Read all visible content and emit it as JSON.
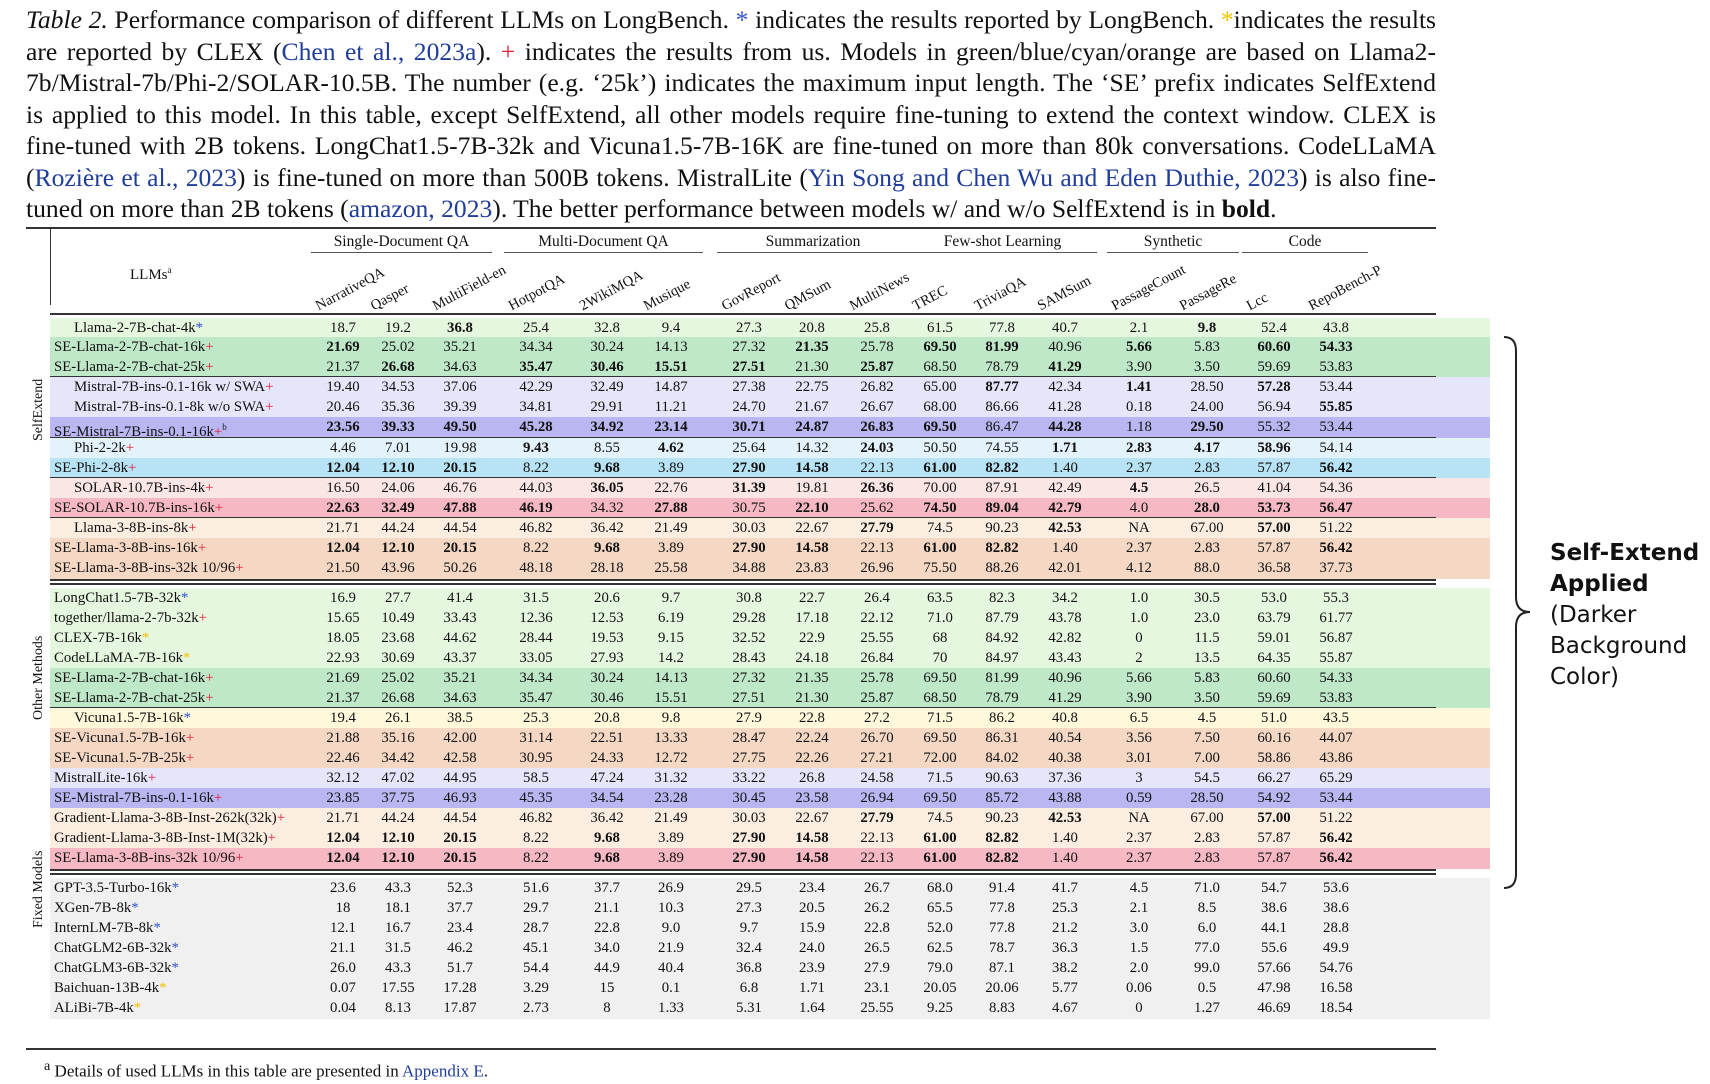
{
  "caption": {
    "label": "Table 2.",
    "text_parts": [
      " Performance comparison of different LLMs on LongBench. ",
      "*",
      " indicates the results reported by LongBench. ",
      "*",
      "indicates the results are reported by CLEX (",
      "Chen et al., 2023a",
      "). ",
      "+",
      " indicates the results from us. Models in green/blue/cyan/orange are based on Llama2-7b/Mistral-7b/Phi-2/SOLAR-10.5B. The number (e.g. ‘25k’) indicates the maximum input length. The ‘SE’ prefix indicates SelfExtend is applied to this model. In this table, except SelfExtend, all other models require fine-tuning to extend the context window. CLEX is fine-tuned with 2B tokens. LongChat1.5-7B-32k and Vicuna1.5-7B-16K are fine-tuned on more than 80k conversations. CodeLLaMA (",
      "Rozière et al., 2023",
      ") is fine-tuned on more than 500B tokens. MistralLite (",
      "Yin Song and Chen Wu and Eden Duthie, 2023",
      ") is also fine-tuned on more than 2B tokens (",
      "amazon, 2023",
      "). The better performance between models w/ and w/o SelfExtend is in ",
      "bold",
      "."
    ]
  },
  "header": {
    "llms_label": "LLMs",
    "llms_sup": "a",
    "groups": [
      "Single-Document QA",
      "Multi-Document QA",
      "Summarization",
      "Few-shot Learning",
      "Synthetic",
      "Code"
    ],
    "columns": [
      "NarrativeQA",
      "Qasper",
      "MultiField-en",
      "HotpotQA",
      "2WikiMQA",
      "Musique",
      "GovReport",
      "QMSum",
      "MultiNews",
      "TREC",
      "TriviaQA",
      "SAMSum",
      "PassageCount",
      "PassageRe",
      "Lcc",
      "RepoBench-P"
    ]
  },
  "sections": {
    "selfextend": "SelfExtend",
    "other": "Other Methods",
    "fixed": "Fixed Models"
  },
  "colors": {
    "green": "#e6f7df",
    "green_dark": "#bfe8c8",
    "blue": "#e6e6fa",
    "blue_dark": "#b9b6f2",
    "cyan": "#e4f3fb",
    "cyan_dark": "#b8e3f5",
    "pink": "#fbe6e6",
    "pink_dark": "#f6b8c2",
    "orange": "#fbeee0",
    "orange_dark": "#f5d8c4",
    "yellow": "#fff9dc",
    "gray": "#f0f0f0"
  },
  "rows": [
    {
      "name": "Llama-2-7B-chat-4k",
      "mark": "*",
      "indent": true,
      "bg": "green",
      "sep": "thick",
      "vals": [
        "18.7",
        "19.2",
        "36.8",
        "25.4",
        "32.8",
        "9.4",
        "27.3",
        "20.8",
        "25.8",
        "61.5",
        "77.8",
        "40.7",
        "2.1",
        "9.8",
        "52.4",
        "43.8"
      ],
      "bold": [
        2,
        13
      ]
    },
    {
      "name": "SE-Llama-2-7B-chat-16k",
      "mark": "+",
      "indent": false,
      "bg": "green_dark",
      "vals": [
        "21.69",
        "25.02",
        "35.21",
        "34.34",
        "30.24",
        "14.13",
        "27.32",
        "21.35",
        "25.78",
        "69.50",
        "81.99",
        "40.96",
        "5.66",
        "5.83",
        "60.60",
        "54.33"
      ],
      "bold": [
        0,
        7,
        9,
        10,
        12,
        14,
        15
      ]
    },
    {
      "name": "SE-Llama-2-7B-chat-25k",
      "mark": "+",
      "indent": false,
      "bg": "green_dark",
      "vals": [
        "21.37",
        "26.68",
        "34.63",
        "35.47",
        "30.46",
        "15.51",
        "27.51",
        "21.30",
        "25.87",
        "68.50",
        "78.79",
        "41.29",
        "3.90",
        "3.50",
        "59.69",
        "53.83"
      ],
      "bold": [
        1,
        3,
        4,
        5,
        6,
        8,
        11
      ]
    },
    {
      "name": "Mistral-7B-ins-0.1-16k w/ SWA",
      "mark": "+",
      "indent": true,
      "bg": "blue",
      "sep": "line",
      "vals": [
        "19.40",
        "34.53",
        "37.06",
        "42.29",
        "32.49",
        "14.87",
        "27.38",
        "22.75",
        "26.82",
        "65.00",
        "87.77",
        "42.34",
        "1.41",
        "28.50",
        "57.28",
        "53.44"
      ],
      "bold": [
        10,
        12,
        14
      ]
    },
    {
      "name": "Mistral-7B-ins-0.1-8k w/o SWA",
      "mark": "+",
      "indent": true,
      "bg": "blue",
      "vals": [
        "20.46",
        "35.36",
        "39.39",
        "34.81",
        "29.91",
        "11.21",
        "24.70",
        "21.67",
        "26.67",
        "68.00",
        "86.66",
        "41.28",
        "0.18",
        "24.00",
        "56.94",
        "55.85"
      ],
      "bold": [
        15
      ]
    },
    {
      "name": "SE-Mistral-7B-ins-0.1-16k",
      "mark": "+",
      "sup": "b",
      "indent": false,
      "bg": "blue_dark",
      "vals": [
        "23.56",
        "39.33",
        "49.50",
        "45.28",
        "34.92",
        "23.14",
        "30.71",
        "24.87",
        "26.83",
        "69.50",
        "86.47",
        "44.28",
        "1.18",
        "29.50",
        "55.32",
        "53.44"
      ],
      "bold": [
        0,
        1,
        2,
        3,
        4,
        5,
        6,
        7,
        8,
        9,
        11,
        13
      ]
    },
    {
      "name": "Phi-2-2k",
      "mark": "+",
      "indent": true,
      "bg": "cyan",
      "sep": "line",
      "vals": [
        "4.46",
        "7.01",
        "19.98",
        "9.43",
        "8.55",
        "4.62",
        "25.64",
        "14.32",
        "24.03",
        "50.50",
        "74.55",
        "1.71",
        "2.83",
        "4.17",
        "58.96",
        "54.14"
      ],
      "bold": [
        3,
        5,
        8,
        11,
        12,
        13,
        14
      ]
    },
    {
      "name": "SE-Phi-2-8k",
      "mark": "+",
      "indent": false,
      "bg": "cyan_dark",
      "vals": [
        "12.04",
        "12.10",
        "20.15",
        "8.22",
        "9.68",
        "3.89",
        "27.90",
        "14.58",
        "22.13",
        "61.00",
        "82.82",
        "1.40",
        "2.37",
        "2.83",
        "57.87",
        "56.42"
      ],
      "bold": [
        0,
        1,
        2,
        4,
        6,
        7,
        9,
        10,
        15
      ]
    },
    {
      "name": "SOLAR-10.7B-ins-4k",
      "mark": "+",
      "indent": true,
      "bg": "pink",
      "sep": "line",
      "vals": [
        "16.50",
        "24.06",
        "46.76",
        "44.03",
        "36.05",
        "22.76",
        "31.39",
        "19.81",
        "26.36",
        "70.00",
        "87.91",
        "42.49",
        "4.5",
        "26.5",
        "41.04",
        "54.36"
      ],
      "bold": [
        4,
        6,
        8,
        12
      ]
    },
    {
      "name": "SE-SOLAR-10.7B-ins-16k",
      "mark": "+",
      "indent": false,
      "bg": "pink_dark",
      "vals": [
        "22.63",
        "32.49",
        "47.88",
        "46.19",
        "34.32",
        "27.88",
        "30.75",
        "22.10",
        "25.62",
        "74.50",
        "89.04",
        "42.79",
        "4.0",
        "28.0",
        "53.73",
        "56.47"
      ],
      "bold": [
        0,
        1,
        2,
        3,
        5,
        7,
        9,
        10,
        11,
        13,
        14,
        15
      ]
    },
    {
      "name": "Llama-3-8B-ins-8k",
      "mark": "+",
      "indent": true,
      "bg": "orange",
      "sep": "line",
      "vals": [
        "21.71",
        "44.24",
        "44.54",
        "46.82",
        "36.42",
        "21.49",
        "30.03",
        "22.67",
        "27.79",
        "74.5",
        "90.23",
        "42.53",
        "NA",
        "67.00",
        "57.00",
        "51.22"
      ],
      "bold": [
        8,
        11,
        14
      ]
    },
    {
      "name": "SE-Llama-3-8B-ins-16k",
      "mark": "+",
      "indent": false,
      "bg": "orange_dark",
      "vals": [
        "12.04",
        "12.10",
        "20.15",
        "8.22",
        "9.68",
        "3.89",
        "27.90",
        "14.58",
        "22.13",
        "61.00",
        "82.82",
        "1.40",
        "2.37",
        "2.83",
        "57.87",
        "56.42"
      ],
      "bold": [
        0,
        1,
        2,
        4,
        6,
        7,
        9,
        10,
        15
      ]
    },
    {
      "name": "SE-Llama-3-8B-ins-32k    10/96",
      "mark": "+",
      "indent": false,
      "bg": "orange_dark",
      "vals": [
        "21.50",
        "43.96",
        "50.26",
        "48.18",
        "28.18",
        "25.58",
        "34.88",
        "23.83",
        "26.96",
        "75.50",
        "88.26",
        "42.01",
        "4.12",
        "88.0",
        "36.58",
        "37.73"
      ],
      "bold": []
    },
    {
      "name": "LongChat1.5-7B-32k",
      "mark": "*",
      "indent": false,
      "bg": "green",
      "sep": "double",
      "vals": [
        "16.9",
        "27.7",
        "41.4",
        "31.5",
        "20.6",
        "9.7",
        "30.8",
        "22.7",
        "26.4",
        "63.5",
        "82.3",
        "34.2",
        "1.0",
        "30.5",
        "53.0",
        "55.3"
      ],
      "bold": []
    },
    {
      "name": "together/llama-2-7b-32k",
      "mark": "+",
      "indent": false,
      "bg": "green",
      "vals": [
        "15.65",
        "10.49",
        "33.43",
        "12.36",
        "12.53",
        "6.19",
        "29.28",
        "17.18",
        "22.12",
        "71.0",
        "87.79",
        "43.78",
        "1.0",
        "23.0",
        "63.79",
        "61.77"
      ],
      "bold": []
    },
    {
      "name": "CLEX-7B-16k",
      "mark": "ystar",
      "indent": false,
      "bg": "green",
      "vals": [
        "18.05",
        "23.68",
        "44.62",
        "28.44",
        "19.53",
        "9.15",
        "32.52",
        "22.9",
        "25.55",
        "68",
        "84.92",
        "42.82",
        "0",
        "11.5",
        "59.01",
        "56.87"
      ],
      "bold": []
    },
    {
      "name": "CodeLLaMA-7B-16k",
      "mark": "ystar",
      "indent": false,
      "bg": "green",
      "vals": [
        "22.93",
        "30.69",
        "43.37",
        "33.05",
        "27.93",
        "14.2",
        "28.43",
        "24.18",
        "26.84",
        "70",
        "84.97",
        "43.43",
        "2",
        "13.5",
        "64.35",
        "55.87"
      ],
      "bold": []
    },
    {
      "name": "SE-Llama-2-7B-chat-16k",
      "mark": "+",
      "indent": false,
      "bg": "green_dark",
      "vals": [
        "21.69",
        "25.02",
        "35.21",
        "34.34",
        "30.24",
        "14.13",
        "27.32",
        "21.35",
        "25.78",
        "69.50",
        "81.99",
        "40.96",
        "5.66",
        "5.83",
        "60.60",
        "54.33"
      ],
      "bold": []
    },
    {
      "name": "SE-Llama-2-7B-chat-25k",
      "mark": "+",
      "indent": false,
      "bg": "green_dark",
      "vals": [
        "21.37",
        "26.68",
        "34.63",
        "35.47",
        "30.46",
        "15.51",
        "27.51",
        "21.30",
        "25.87",
        "68.50",
        "78.79",
        "41.29",
        "3.90",
        "3.50",
        "59.69",
        "53.83"
      ],
      "bold": []
    },
    {
      "name": "Vicuna1.5-7B-16k",
      "mark": "*",
      "indent": true,
      "bg": "yellow",
      "sep": "line",
      "vals": [
        "19.4",
        "26.1",
        "38.5",
        "25.3",
        "20.8",
        "9.8",
        "27.9",
        "22.8",
        "27.2",
        "71.5",
        "86.2",
        "40.8",
        "6.5",
        "4.5",
        "51.0",
        "43.5"
      ],
      "bold": []
    },
    {
      "name": "SE-Vicuna1.5-7B-16k",
      "mark": "+",
      "indent": false,
      "bg": "orange_dark",
      "vals": [
        "21.88",
        "35.16",
        "42.00",
        "31.14",
        "22.51",
        "13.33",
        "28.47",
        "22.24",
        "26.70",
        "69.50",
        "86.31",
        "40.54",
        "3.56",
        "7.50",
        "60.16",
        "44.07"
      ],
      "bold": []
    },
    {
      "name": "SE-Vicuna1.5-7B-25k",
      "mark": "+",
      "indent": false,
      "bg": "orange_dark",
      "vals": [
        "22.46",
        "34.42",
        "42.58",
        "30.95",
        "24.33",
        "12.72",
        "27.75",
        "22.26",
        "27.21",
        "72.00",
        "84.02",
        "40.38",
        "3.01",
        "7.00",
        "58.86",
        "43.86"
      ],
      "bold": []
    },
    {
      "name": "MistralLite-16k",
      "mark": "+",
      "indent": false,
      "bg": "blue",
      "vals": [
        "32.12",
        "47.02",
        "44.95",
        "58.5",
        "47.24",
        "31.32",
        "33.22",
        "26.8",
        "24.58",
        "71.5",
        "90.63",
        "37.36",
        "3",
        "54.5",
        "66.27",
        "65.29"
      ],
      "bold": []
    },
    {
      "name": "SE-Mistral-7B-ins-0.1-16k",
      "mark": "+",
      "indent": false,
      "bg": "blue_dark",
      "vals": [
        "23.85",
        "37.75",
        "46.93",
        "45.35",
        "34.54",
        "23.28",
        "30.45",
        "23.58",
        "26.94",
        "69.50",
        "85.72",
        "43.88",
        "0.59",
        "28.50",
        "54.92",
        "53.44"
      ],
      "bold": []
    },
    {
      "name": "Gradient-Llama-3-8B-Inst-262k(32k)",
      "mark": "+",
      "indent": false,
      "bg": "orange",
      "vals": [
        "21.71",
        "44.24",
        "44.54",
        "46.82",
        "36.42",
        "21.49",
        "30.03",
        "22.67",
        "27.79",
        "74.5",
        "90.23",
        "42.53",
        "NA",
        "67.00",
        "57.00",
        "51.22"
      ],
      "bold": [
        8,
        11,
        14
      ]
    },
    {
      "name": "Gradient-Llama-3-8B-Inst-1M(32k)",
      "mark": "+",
      "indent": false,
      "bg": "orange",
      "vals": [
        "12.04",
        "12.10",
        "20.15",
        "8.22",
        "9.68",
        "3.89",
        "27.90",
        "14.58",
        "22.13",
        "61.00",
        "82.82",
        "1.40",
        "2.37",
        "2.83",
        "57.87",
        "56.42"
      ],
      "bold": [
        0,
        1,
        2,
        4,
        6,
        7,
        9,
        10,
        15
      ]
    },
    {
      "name": "SE-Llama-3-8B-ins-32k    10/96",
      "mark": "+",
      "indent": false,
      "bg": "pink_dark",
      "vals": [
        "12.04",
        "12.10",
        "20.15",
        "8.22",
        "9.68",
        "3.89",
        "27.90",
        "14.58",
        "22.13",
        "61.00",
        "82.82",
        "1.40",
        "2.37",
        "2.83",
        "57.87",
        "56.42"
      ],
      "bold": [
        0,
        1,
        2,
        4,
        6,
        7,
        9,
        10,
        15
      ]
    },
    {
      "name": "GPT-3.5-Turbo-16k",
      "mark": "*",
      "indent": false,
      "bg": "gray",
      "sep": "double",
      "vals": [
        "23.6",
        "43.3",
        "52.3",
        "51.6",
        "37.7",
        "26.9",
        "29.5",
        "23.4",
        "26.7",
        "68.0",
        "91.4",
        "41.7",
        "4.5",
        "71.0",
        "54.7",
        "53.6"
      ],
      "bold": []
    },
    {
      "name": "XGen-7B-8k",
      "mark": "*",
      "indent": false,
      "bg": "gray",
      "vals": [
        "18",
        "18.1",
        "37.7",
        "29.7",
        "21.1",
        "10.3",
        "27.3",
        "20.5",
        "26.2",
        "65.5",
        "77.8",
        "25.3",
        "2.1",
        "8.5",
        "38.6",
        "38.6"
      ],
      "bold": []
    },
    {
      "name": "InternLM-7B-8k",
      "mark": "*",
      "indent": false,
      "bg": "gray",
      "vals": [
        "12.1",
        "16.7",
        "23.4",
        "28.7",
        "22.8",
        "9.0",
        "9.7",
        "15.9",
        "22.8",
        "52.0",
        "77.8",
        "21.2",
        "3.0",
        "6.0",
        "44.1",
        "28.8"
      ],
      "bold": []
    },
    {
      "name": "ChatGLM2-6B-32k",
      "mark": "*",
      "indent": false,
      "bg": "gray",
      "vals": [
        "21.1",
        "31.5",
        "46.2",
        "45.1",
        "34.0",
        "21.9",
        "32.4",
        "24.0",
        "26.5",
        "62.5",
        "78.7",
        "36.3",
        "1.5",
        "77.0",
        "55.6",
        "49.9"
      ],
      "bold": []
    },
    {
      "name": "ChatGLM3-6B-32k",
      "mark": "*",
      "indent": false,
      "bg": "gray",
      "vals": [
        "26.0",
        "43.3",
        "51.7",
        "54.4",
        "44.9",
        "40.4",
        "36.8",
        "23.9",
        "27.9",
        "79.0",
        "87.1",
        "38.2",
        "2.0",
        "99.0",
        "57.66",
        "54.76"
      ],
      "bold": []
    },
    {
      "name": "Baichuan-13B-4k",
      "mark": "ystar",
      "indent": false,
      "bg": "gray",
      "vals": [
        "0.07",
        "17.55",
        "17.28",
        "3.29",
        "15",
        "0.1",
        "6.8",
        "1.71",
        "23.1",
        "20.05",
        "20.06",
        "5.77",
        "0.06",
        "0.5",
        "47.98",
        "16.58"
      ],
      "bold": []
    },
    {
      "name": "ALiBi-7B-4k",
      "mark": "ystar",
      "indent": false,
      "bg": "gray",
      "vals": [
        "0.04",
        "8.13",
        "17.87",
        "2.73",
        "8",
        "1.33",
        "5.31",
        "1.64",
        "25.55",
        "9.25",
        "8.83",
        "4.67",
        "0",
        "1.27",
        "46.69",
        "18.54"
      ],
      "bold": []
    }
  ],
  "footnote": {
    "sup": "a",
    "text": " Details of used LLMs in this table are presented in ",
    "link": "Appendix E",
    "end": "."
  },
  "note": {
    "line1": "Self-Extend",
    "line2": "Applied",
    "line3": "(Darker",
    "line4": "Background",
    "line5": "Color)"
  }
}
